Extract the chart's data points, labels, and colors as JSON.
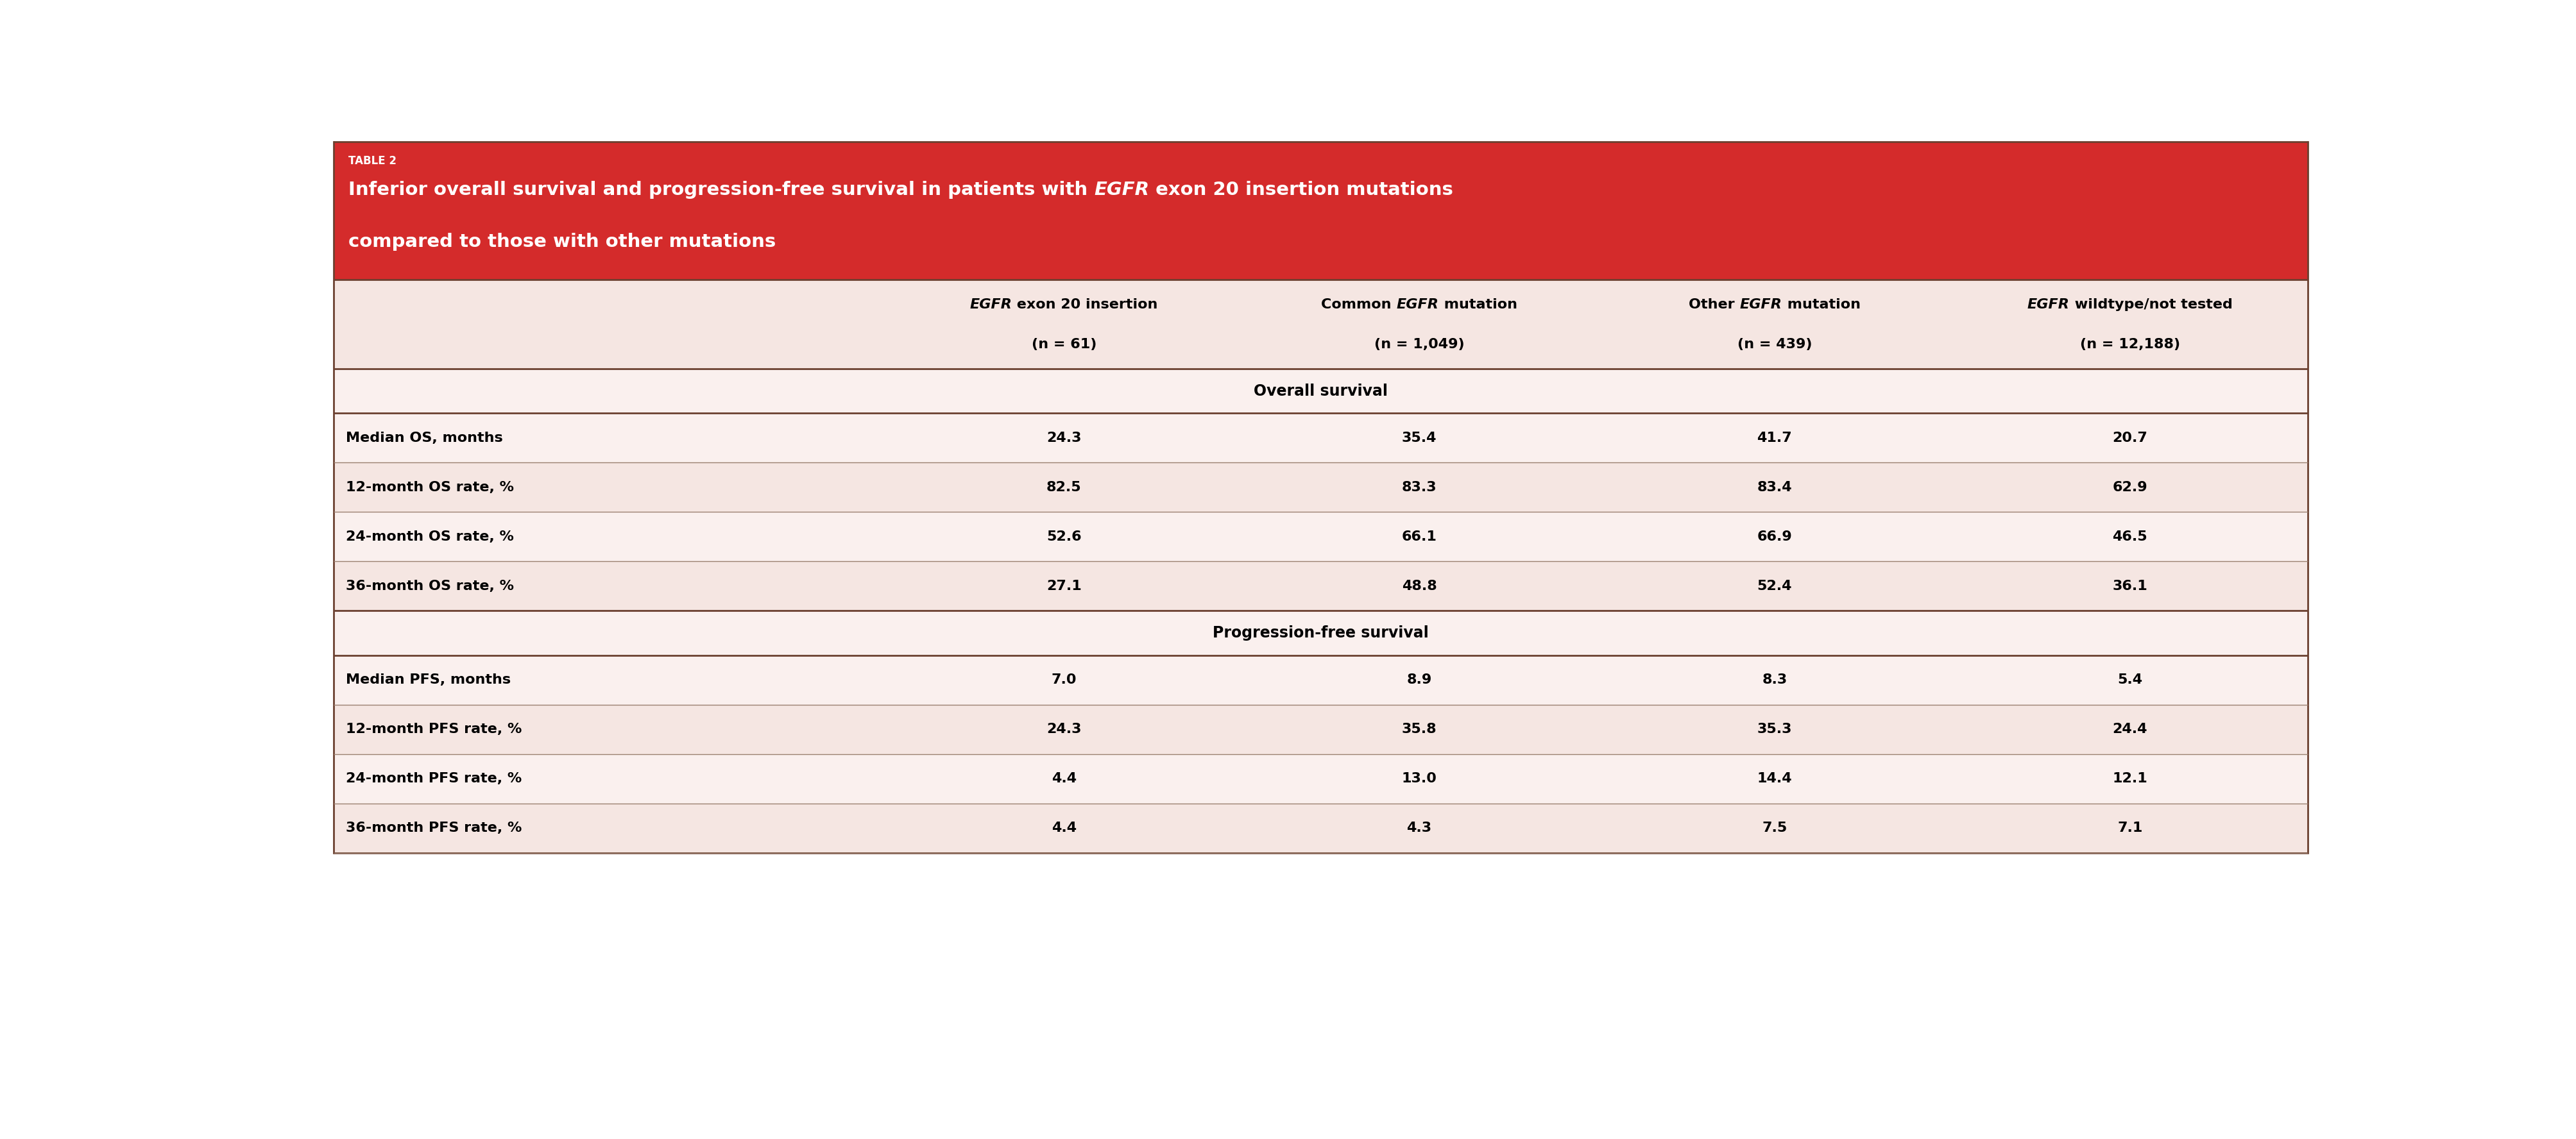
{
  "table_label": "TABLE 2",
  "title_parts_line1": [
    {
      "text": "Inferior overall survival and progression-free survival in patients with ",
      "italic": false
    },
    {
      "text": "EGFR",
      "italic": true
    },
    {
      "text": " exon 20 insertion mutations",
      "italic": false
    }
  ],
  "title_parts_line2": [
    {
      "text": "compared to those with other mutations",
      "italic": false
    }
  ],
  "header_red_bg": "#D42B2B",
  "table_bg": "#FAF0EE",
  "col_header_bg": "#F5E6E2",
  "section_bg": "#FAF0EE",
  "row_bg_alt": "#F5E6E2",
  "col_headers": [
    {
      "line1_parts": [
        {
          "text": "EGFR",
          "italic": true
        },
        {
          "text": " exon 20 insertion",
          "italic": false
        }
      ],
      "line2": "(n = 61)"
    },
    {
      "line1_parts": [
        {
          "text": "Common ",
          "italic": false
        },
        {
          "text": "EGFR",
          "italic": true
        },
        {
          "text": " mutation",
          "italic": false
        }
      ],
      "line2": "(n = 1,049)"
    },
    {
      "line1_parts": [
        {
          "text": "Other ",
          "italic": false
        },
        {
          "text": "EGFR",
          "italic": true
        },
        {
          "text": " mutation",
          "italic": false
        }
      ],
      "line2": "(n = 439)"
    },
    {
      "line1_parts": [
        {
          "text": "EGFR",
          "italic": true
        },
        {
          "text": " wildtype/not tested",
          "italic": false
        }
      ],
      "line2": "(n = 12,188)"
    }
  ],
  "row_labels": [
    "Median OS, months",
    "12-month OS rate, %",
    "24-month OS rate, %",
    "36-month OS rate, %",
    "Median PFS, months",
    "12-month PFS rate, %",
    "24-month PFS rate, %",
    "36-month PFS rate, %"
  ],
  "data": [
    [
      "24.3",
      "35.4",
      "41.7",
      "20.7"
    ],
    [
      "82.5",
      "83.3",
      "83.4",
      "62.9"
    ],
    [
      "52.6",
      "66.1",
      "66.9",
      "46.5"
    ],
    [
      "27.1",
      "48.8",
      "52.4",
      "36.1"
    ],
    [
      "7.0",
      "8.9",
      "8.3",
      "5.4"
    ],
    [
      "24.3",
      "35.8",
      "35.3",
      "24.4"
    ],
    [
      "4.4",
      "13.0",
      "14.4",
      "12.1"
    ],
    [
      "4.4",
      "4.3",
      "7.5",
      "7.1"
    ]
  ],
  "font_size_label": 12,
  "font_size_title": 21,
  "font_size_col_header": 16,
  "font_size_section": 17,
  "font_size_data": 16
}
